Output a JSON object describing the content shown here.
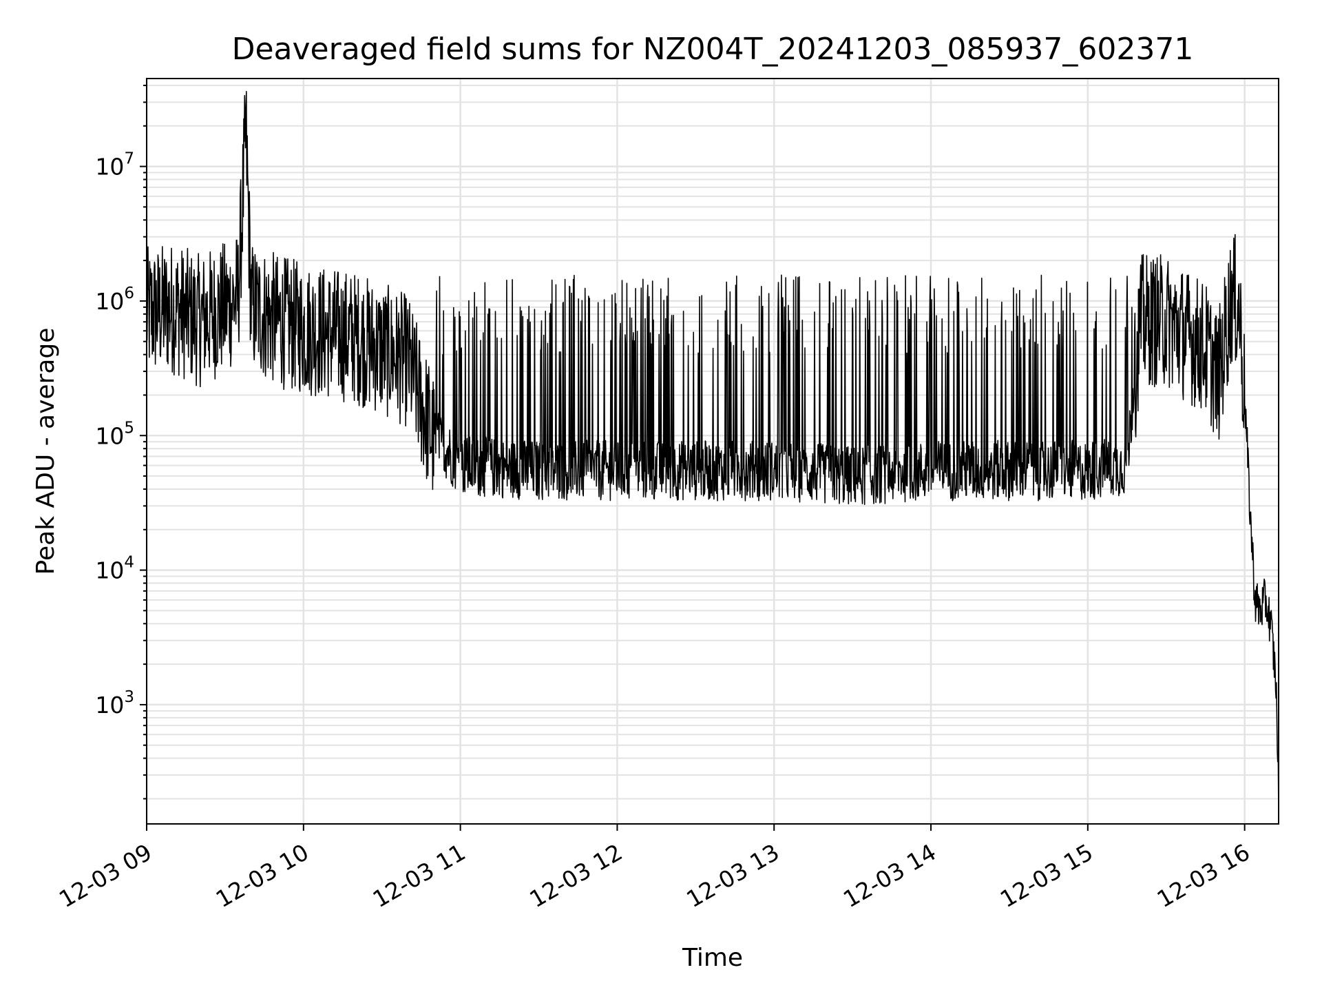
{
  "chart_data": {
    "type": "line",
    "title": "Deaveraged field sums for NZ004T_20241203_085937_602371",
    "xlabel": "Time",
    "ylabel": "Peak ADU - average",
    "y_scale": "log",
    "ylim": [
      130,
      45000000
    ],
    "xlim": [
      "2024-12-03 09:00",
      "2024-12-03 16:13"
    ],
    "x_ticks": [
      "12-03 09",
      "12-03 10",
      "12-03 11",
      "12-03 12",
      "12-03 13",
      "12-03 14",
      "12-03 15",
      "12-03 16"
    ],
    "y_ticks": [
      "10^3",
      "10^4",
      "10^5",
      "10^6",
      "10^7"
    ],
    "y_tick_values": [
      1000,
      10000,
      100000,
      1000000,
      10000000
    ],
    "grid": true,
    "line_color": "#000000",
    "series": [
      {
        "x": [
          "2024-12-03 09:00",
          "2024-12-03 09:10",
          "2024-12-03 09:20",
          "2024-12-03 09:30",
          "2024-12-03 09:35",
          "2024-12-03 09:38",
          "2024-12-03 09:40",
          "2024-12-03 09:45",
          "2024-12-03 09:50",
          "2024-12-03 10:00",
          "2024-12-03 10:20",
          "2024-12-03 10:40",
          "2024-12-03 10:50",
          "2024-12-03 11:00",
          "2024-12-03 11:30",
          "2024-12-03 12:00",
          "2024-12-03 12:30",
          "2024-12-03 13:00",
          "2024-12-03 13:30",
          "2024-12-03 14:00",
          "2024-12-03 14:30",
          "2024-12-03 15:00",
          "2024-12-03 15:15",
          "2024-12-03 15:20",
          "2024-12-03 15:30",
          "2024-12-03 15:45",
          "2024-12-03 15:50",
          "2024-12-03 15:55",
          "2024-12-03 15:58",
          "2024-12-03 16:00",
          "2024-12-03 16:02",
          "2024-12-03 16:04",
          "2024-12-03 16:06",
          "2024-12-03 16:08",
          "2024-12-03 16:10",
          "2024-12-03 16:12",
          "2024-12-03 16:13"
        ],
        "values": [
          900000,
          1000000,
          800000,
          1000000,
          1200000,
          20000000,
          1000000,
          900000,
          800000,
          700000,
          600000,
          400000,
          100000,
          60000,
          55000,
          55000,
          55000,
          55000,
          50000,
          55000,
          55000,
          55000,
          60000,
          800000,
          800000,
          500000,
          300000,
          1200000,
          1000000,
          200000,
          30000,
          6000,
          5000,
          6000,
          4000,
          1500,
          200
        ]
      }
    ]
  }
}
